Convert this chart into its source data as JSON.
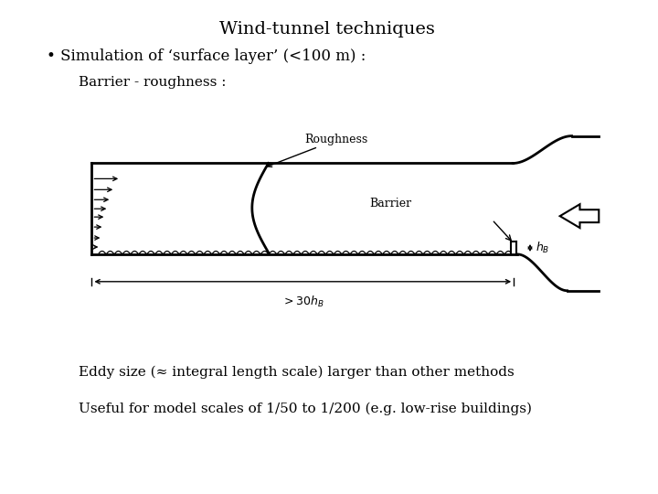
{
  "title": "Wind-tunnel techniques",
  "bullet_text": "• Simulation of ‘surface layer’ (<100 m) :",
  "subtitle": "Barrier - roughness :",
  "label_roughness": "Roughness",
  "label_barrier": "Barrier",
  "label_hb": "hB",
  "label_30hb": ">30hB",
  "eddy_text": "Eddy size (≈ integral length scale) larger than other methods",
  "useful_text": "Useful for model scales of 1/50 to 1/200 (e.g. low-rise buildings)",
  "bg_color": "#ffffff",
  "line_color": "#000000",
  "font_size_title": 14,
  "font_size_body": 12,
  "font_size_label": 9,
  "font_size_small": 8
}
